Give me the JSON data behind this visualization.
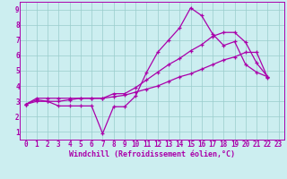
{
  "bg_color": "#cceef0",
  "line_color": "#aa00aa",
  "grid_color": "#99cccc",
  "xlabel": "Windchill (Refroidissement éolien,°C)",
  "xlabel_color": "#aa00aa",
  "xlim": [
    -0.5,
    23.5
  ],
  "ylim": [
    0.5,
    9.5
  ],
  "xticks": [
    0,
    1,
    2,
    3,
    4,
    5,
    6,
    7,
    8,
    9,
    10,
    11,
    12,
    13,
    14,
    15,
    16,
    17,
    18,
    19,
    20,
    21,
    22,
    23
  ],
  "yticks": [
    1,
    2,
    3,
    4,
    5,
    6,
    7,
    8,
    9
  ],
  "line1_x": [
    0,
    1,
    2,
    3,
    4,
    5,
    6,
    7,
    8,
    9,
    10,
    11,
    12,
    13,
    14,
    15,
    16,
    17,
    18,
    19,
    20,
    21,
    22
  ],
  "line1_y": [
    2.8,
    3.1,
    3.0,
    2.7,
    2.7,
    2.7,
    2.7,
    0.9,
    2.65,
    2.65,
    3.35,
    4.9,
    6.2,
    7.0,
    7.8,
    9.1,
    8.6,
    7.4,
    6.65,
    6.9,
    5.4,
    4.9,
    4.6
  ],
  "line2_x": [
    0,
    1,
    2,
    3,
    4,
    5,
    6,
    7,
    8,
    9,
    10,
    11,
    12,
    13,
    14,
    15,
    16,
    17,
    18,
    19,
    20,
    21,
    22
  ],
  "line2_y": [
    2.8,
    3.2,
    3.2,
    3.2,
    3.2,
    3.2,
    3.2,
    3.2,
    3.5,
    3.5,
    3.9,
    4.4,
    4.9,
    5.4,
    5.8,
    6.3,
    6.7,
    7.25,
    7.5,
    7.5,
    6.85,
    5.5,
    4.6
  ],
  "line3_x": [
    0,
    1,
    2,
    3,
    4,
    5,
    6,
    7,
    8,
    9,
    10,
    11,
    12,
    13,
    14,
    15,
    16,
    17,
    18,
    19,
    20,
    21,
    22
  ],
  "line3_y": [
    2.8,
    3.0,
    3.0,
    3.0,
    3.1,
    3.2,
    3.2,
    3.2,
    3.3,
    3.4,
    3.6,
    3.8,
    4.0,
    4.3,
    4.6,
    4.8,
    5.1,
    5.4,
    5.7,
    5.9,
    6.2,
    6.2,
    4.55
  ],
  "tick_fontsize": 5.5,
  "xlabel_fontsize": 6.0
}
